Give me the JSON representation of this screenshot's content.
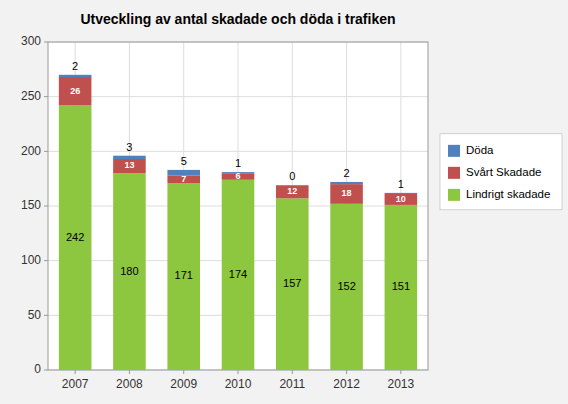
{
  "chart_data": {
    "type": "bar",
    "title": "Utveckling av antal skadade och döda i trafiken",
    "categories": [
      "2007",
      "2008",
      "2009",
      "2010",
      "2011",
      "2012",
      "2013"
    ],
    "series": [
      {
        "name": "Lindrigt skadade",
        "color": "#8DC63F",
        "values": [
          242,
          180,
          171,
          174,
          157,
          152,
          151
        ]
      },
      {
        "name": "Svårt Skadade",
        "color": "#C0504D",
        "values": [
          26,
          13,
          7,
          6,
          12,
          18,
          10
        ]
      },
      {
        "name": "Döda",
        "color": "#4F81BD",
        "values": [
          2,
          3,
          5,
          1,
          0,
          2,
          1
        ]
      }
    ],
    "stacked": true,
    "data_labels": true,
    "ylim": [
      0,
      300
    ],
    "yticks": [
      0,
      50,
      100,
      150,
      200,
      250,
      300
    ],
    "grid": true,
    "legend": "right"
  }
}
